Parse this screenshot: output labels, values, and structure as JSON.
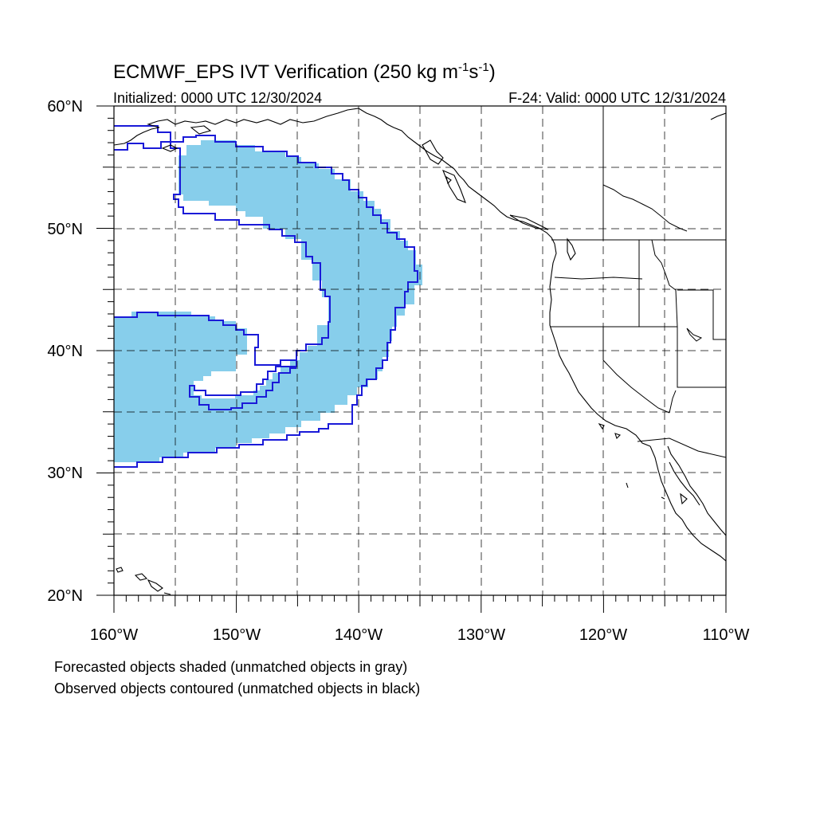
{
  "title": {
    "prefix": "ECMWF_EPS IVT Verification (250 kg m",
    "exp1": "-1",
    "mid": "s",
    "exp2": "-1",
    "suffix": ")"
  },
  "subtitle": {
    "left": "Initialized: 0000 UTC 12/30/2024",
    "right": "F-24: Valid: 0000 UTC 12/31/2024"
  },
  "map": {
    "projection": "cylindrical equidistant",
    "lon_range": [
      -160,
      -110
    ],
    "lat_range": [
      20,
      60
    ],
    "lat_ticks": [
      {
        "value": 60,
        "label": "60°N"
      },
      {
        "value": 50,
        "label": "50°N"
      },
      {
        "value": 40,
        "label": "40°N"
      },
      {
        "value": 30,
        "label": "30°N"
      },
      {
        "value": 20,
        "label": "20°N"
      }
    ],
    "lon_ticks": [
      {
        "value": -160,
        "label": "160°W"
      },
      {
        "value": -150,
        "label": "150°W"
      },
      {
        "value": -140,
        "label": "140°W"
      },
      {
        "value": -130,
        "label": "130°W"
      },
      {
        "value": -120,
        "label": "120°W"
      },
      {
        "value": -110,
        "label": "110°W"
      }
    ],
    "gridlines": "dashed every 5°",
    "colors": {
      "forecast_fill": "#87ceeb",
      "observed_contour": "#1a1ad8",
      "coastline": "#000000"
    }
  },
  "notes": {
    "line1": "Forecasted objects shaded (unmatched objects in gray)",
    "line2": "Observed objects contoured (unmatched objects in black)"
  }
}
